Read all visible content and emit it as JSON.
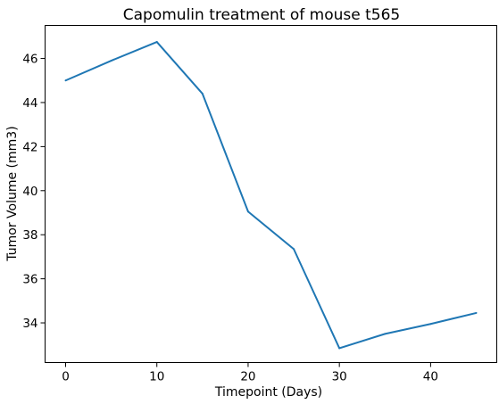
{
  "chart_data": {
    "type": "line",
    "title": "Capomulin treatment of mouse t565",
    "xlabel": "Timepoint (Days)",
    "ylabel": "Tumor Volume (mm3)",
    "xlim": [
      -2.25,
      47.25
    ],
    "ylim": [
      32.2,
      47.5
    ],
    "xticks": [
      0,
      10,
      20,
      30,
      40
    ],
    "yticks": [
      34,
      36,
      38,
      40,
      42,
      44,
      46
    ],
    "grid": false,
    "series": [
      {
        "color": "#1f77b4",
        "x": [
          0,
          5,
          10,
          15,
          20,
          25,
          30,
          35,
          40,
          45
        ],
        "y": [
          45.0,
          45.9,
          46.75,
          44.4,
          39.05,
          37.35,
          32.85,
          33.5,
          33.95,
          34.45
        ]
      }
    ]
  }
}
